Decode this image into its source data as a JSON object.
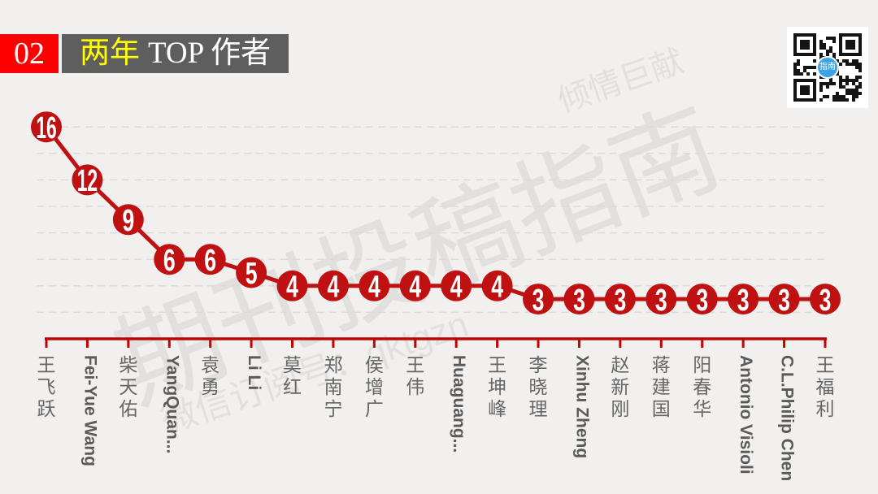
{
  "header": {
    "badge": "02",
    "title_highlight": "两年",
    "title_rest": "TOP 作者"
  },
  "watermarks": {
    "main": "期刊投稿指南",
    "top": "倾情巨献",
    "bottom": "微信订阅号：qktgzn"
  },
  "qr": {
    "center_label": "指南"
  },
  "chart_data": {
    "type": "line",
    "title": "两年 TOP 作者",
    "categories": [
      "王飞跃",
      "Fei-Yue Wang",
      "柴天佑",
      "YangQuan...",
      "袁勇",
      "Li Li",
      "莫红",
      "郑南宁",
      "侯增广",
      "王伟",
      "Huaguang...",
      "王坤峰",
      "李晓理",
      "Xinhu Zheng",
      "赵新刚",
      "蒋建国",
      "阳春华",
      "Antonio Visioli",
      "C.L.Philip Chen",
      "王福利"
    ],
    "values": [
      16,
      12,
      9,
      6,
      6,
      5,
      4,
      4,
      4,
      4,
      4,
      4,
      3,
      3,
      3,
      3,
      3,
      3,
      3,
      3
    ],
    "xlabel": "",
    "ylabel": "",
    "ylim": [
      0,
      17
    ],
    "gridlines": [
      2,
      4,
      6,
      8,
      10,
      12,
      14,
      16
    ],
    "grid_style": "dashed",
    "legend": "none",
    "point_color": "#bf1111",
    "line_color": "#bf1111",
    "axis_color": "#c00404",
    "value_label_color": "#ffffff"
  }
}
